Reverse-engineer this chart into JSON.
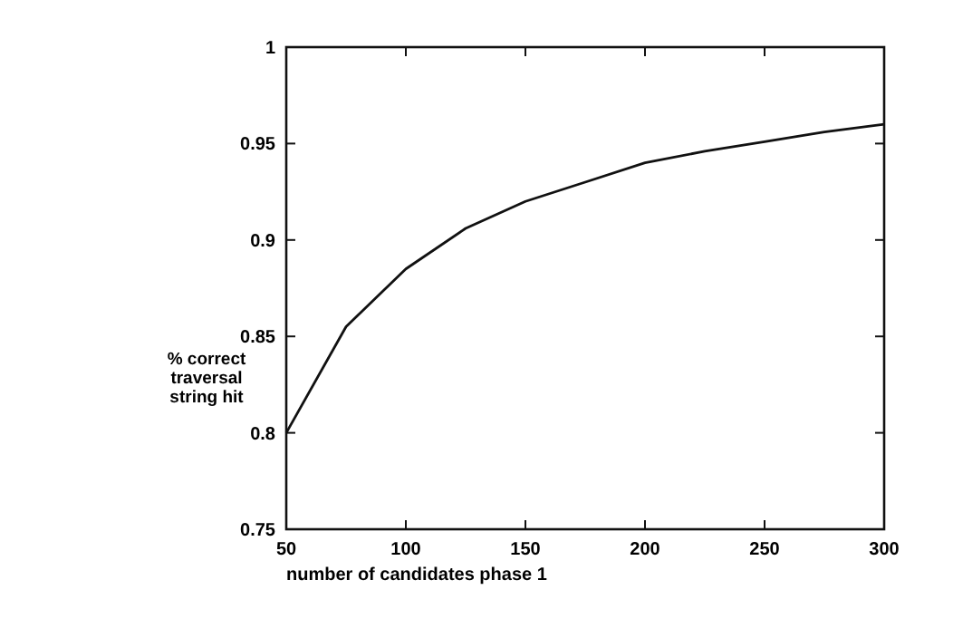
{
  "chart_data": {
    "type": "line",
    "xlabel": "number of candidates phase 1",
    "ylabel": "% correct traversal string hit",
    "x": [
      50,
      75,
      100,
      125,
      150,
      175,
      200,
      225,
      250,
      275,
      300
    ],
    "series": [
      {
        "color": "#111111",
        "values": [
          0.8,
          0.855,
          0.885,
          0.906,
          0.92,
          0.93,
          0.94,
          0.946,
          0.951,
          0.956,
          0.96
        ]
      }
    ],
    "xlim": [
      50,
      300
    ],
    "xticks": [
      50,
      100,
      150,
      200,
      250,
      300
    ],
    "ylim": [
      0.75,
      1
    ],
    "yticks": [
      0.75,
      0.8,
      0.85,
      0.9,
      0.95,
      1
    ],
    "grid": false,
    "marker": "none",
    "line_style": "solid"
  }
}
